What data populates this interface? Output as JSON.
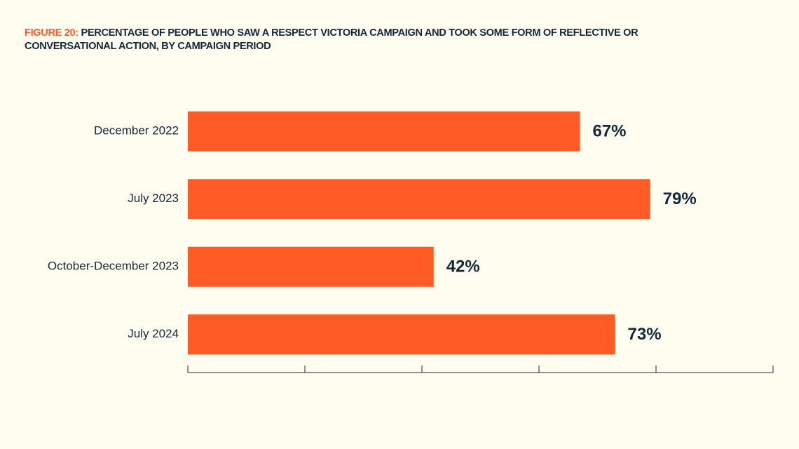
{
  "chart_data": {
    "type": "hbar",
    "figure_label": "FIGURE 20:",
    "title": "PERCENTAGE OF PEOPLE WHO SAW A RESPECT VICTORIA CAMPAIGN AND TOOK SOME FORM OF REFLECTIVE OR CONVERSATIONAL ACTION, BY CAMPAIGN PERIOD",
    "categories": [
      "December 2022",
      "July 2023",
      "October-December 2023",
      "July 2024"
    ],
    "values": [
      67,
      79,
      42,
      73
    ],
    "value_labels": [
      "67%",
      "79%",
      "42%",
      "73%"
    ],
    "color": "#ff5b27",
    "xlim": [
      0,
      100
    ],
    "xticks": [
      0,
      20,
      40,
      60,
      80,
      100
    ]
  }
}
